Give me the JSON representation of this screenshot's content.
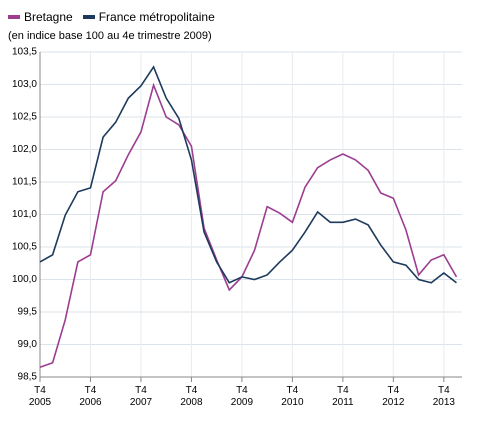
{
  "chart_data": {
    "type": "line",
    "subtitle": "(en indice base 100 au 4e trimestre 2009)",
    "categories": [
      "T4\n2005",
      null,
      null,
      null,
      "T4\n2006",
      null,
      null,
      null,
      "T4\n2007",
      null,
      null,
      null,
      "T4\n2008",
      null,
      null,
      null,
      "T4\n2009",
      null,
      null,
      null,
      "T4\n2010",
      null,
      null,
      null,
      "T4\n2011",
      null,
      null,
      null,
      "T4\n2012",
      null,
      null,
      null,
      "T4\n2013",
      null
    ],
    "series": [
      {
        "name": "Bretagne",
        "color": "#9c3d90",
        "values": [
          98.65,
          98.72,
          99.38,
          100.27,
          100.38,
          101.35,
          101.52,
          101.92,
          102.27,
          102.99,
          102.5,
          102.38,
          102.05,
          100.79,
          100.3,
          99.84,
          100.04,
          100.45,
          101.12,
          101.02,
          100.88,
          101.42,
          101.72,
          101.84,
          101.93,
          101.84,
          101.68,
          101.33,
          101.25,
          100.76,
          100.07,
          100.3,
          100.38,
          100.04
        ]
      },
      {
        "name": "France métropolitaine",
        "color": "#1d3a5c",
        "values": [
          100.27,
          100.38,
          100.99,
          101.35,
          101.41,
          102.19,
          102.42,
          102.79,
          102.98,
          103.27,
          102.79,
          102.48,
          101.84,
          100.73,
          100.27,
          99.95,
          100.04,
          100.0,
          100.07,
          100.27,
          100.45,
          100.73,
          101.04,
          100.88,
          100.88,
          100.93,
          100.84,
          100.53,
          100.27,
          100.22,
          100.0,
          99.95,
          100.1,
          99.95
        ]
      }
    ],
    "ylim": [
      98.5,
      103.5
    ],
    "yticks": [
      {
        "value": 98.5,
        "label": "98,5"
      },
      {
        "value": 99.0,
        "label": "99,0"
      },
      {
        "value": 99.5,
        "label": "99,5"
      },
      {
        "value": 100.0,
        "label": "100,0"
      },
      {
        "value": 100.5,
        "label": "100,5"
      },
      {
        "value": 101.0,
        "label": "101,0"
      },
      {
        "value": 101.5,
        "label": "101,5"
      },
      {
        "value": 102.0,
        "label": "102,0"
      },
      {
        "value": 102.5,
        "label": "102,5"
      },
      {
        "value": 103.0,
        "label": "103,0"
      },
      {
        "value": 103.5,
        "label": "103,5"
      }
    ],
    "grid": true
  }
}
